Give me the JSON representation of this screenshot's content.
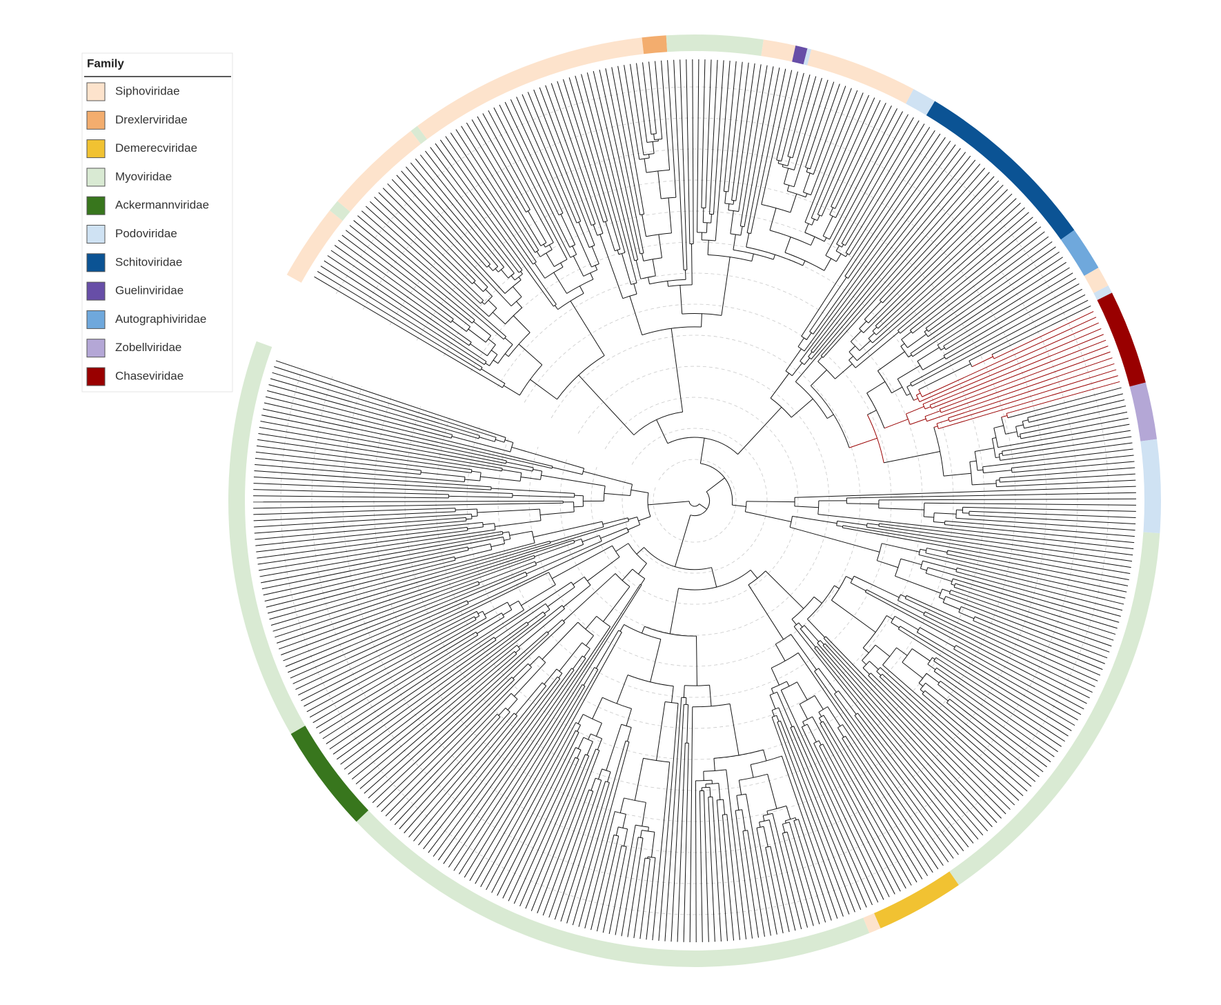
{
  "legend": {
    "title": "Family",
    "items": [
      {
        "label": "Siphoviridae",
        "color": "#fde3cc"
      },
      {
        "label": "Drexlerviridae",
        "color": "#f3ad6e"
      },
      {
        "label": "Demerecviridae",
        "color": "#f1c232"
      },
      {
        "label": "Myoviridae",
        "color": "#d9ead3"
      },
      {
        "label": "Ackermannviridae",
        "color": "#38761d"
      },
      {
        "label": "Podoviridae",
        "color": "#cfe2f3"
      },
      {
        "label": "Schitoviridae",
        "color": "#0b5394"
      },
      {
        "label": "Guelinviridae",
        "color": "#674ea7"
      },
      {
        "label": "Autographiviridae",
        "color": "#6fa8dc"
      },
      {
        "label": "Zobellviridae",
        "color": "#b4a7d6"
      },
      {
        "label": "Chaseviridae",
        "color": "#990000"
      }
    ]
  }
}
